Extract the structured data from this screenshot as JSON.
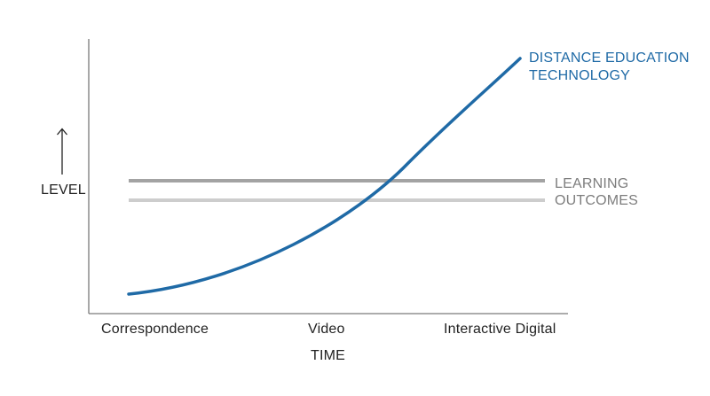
{
  "y_axis": {
    "label": "LEVEL"
  },
  "x_axis": {
    "label": "TIME",
    "ticks": [
      "Correspondence",
      "Video",
      "Interactive Digital"
    ]
  },
  "curves": {
    "technology": {
      "label_line1": "DISTANCE EDUCATION",
      "label_line2": "TECHNOLOGY",
      "color": "#1f6aa6"
    },
    "learning_outcomes": {
      "label_line1": "LEARNING",
      "label_line2": "OUTCOMES",
      "color_upper": "#a3a3a3",
      "color_lower": "#cdcdcd"
    }
  },
  "colors": {
    "axis": "#7a7a7a",
    "text": "#222222"
  }
}
